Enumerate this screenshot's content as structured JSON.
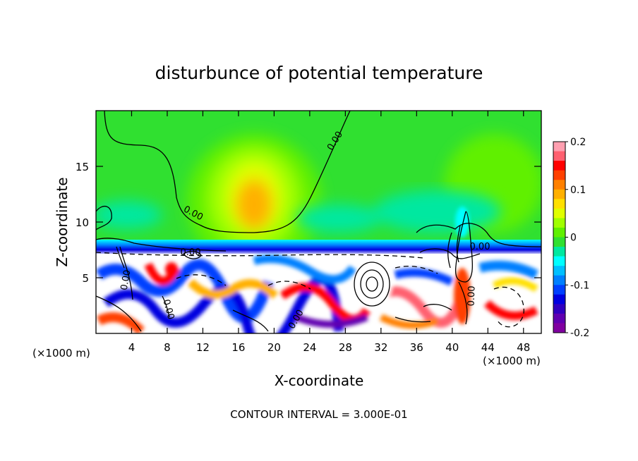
{
  "chart_data": {
    "type": "heatmap",
    "title": "disturbunce of potential temperature",
    "xlabel": "X-coordinate",
    "ylabel": "Z-coordinate",
    "x_unit_label": "(×1000 m)",
    "x_unit_label_right": "(×1000 m)",
    "footer": "CONTOUR INTERVAL = 3.000E-01",
    "xlim": [
      0,
      50
    ],
    "ylim": [
      0,
      20
    ],
    "x_ticks": [
      "4",
      "8",
      "12",
      "16",
      "20",
      "24",
      "28",
      "32",
      "36",
      "40",
      "44",
      "48"
    ],
    "x_tick_values": [
      4,
      8,
      12,
      16,
      20,
      24,
      28,
      32,
      36,
      40,
      44,
      48
    ],
    "y_ticks": [
      "5",
      "10",
      "15"
    ],
    "y_tick_values": [
      5,
      10,
      15
    ],
    "colorbar": {
      "range": [
        -0.2,
        0.2
      ],
      "tick_labels": [
        "0.2",
        "0.1",
        "0",
        "-0.1",
        "-0.2"
      ],
      "tick_values": [
        0.2,
        0.1,
        0,
        -0.1,
        -0.2
      ],
      "colors": [
        "#ff9fb0",
        "#ff6070",
        "#ff0000",
        "#ff4000",
        "#ff8000",
        "#ffb000",
        "#ffe000",
        "#e0ff00",
        "#a0ff00",
        "#60f000",
        "#30e030",
        "#00e8a0",
        "#00ffff",
        "#00c0ff",
        "#0080ff",
        "#0040ff",
        "#0000e0",
        "#3000c0",
        "#6000b0",
        "#8000a0"
      ]
    },
    "contour_labels": [
      "0.00",
      "0.00",
      "0.00",
      "0.00",
      "0.00",
      "0.00",
      "0.00",
      "0.00"
    ],
    "boundary_level_km": 7.5
  }
}
